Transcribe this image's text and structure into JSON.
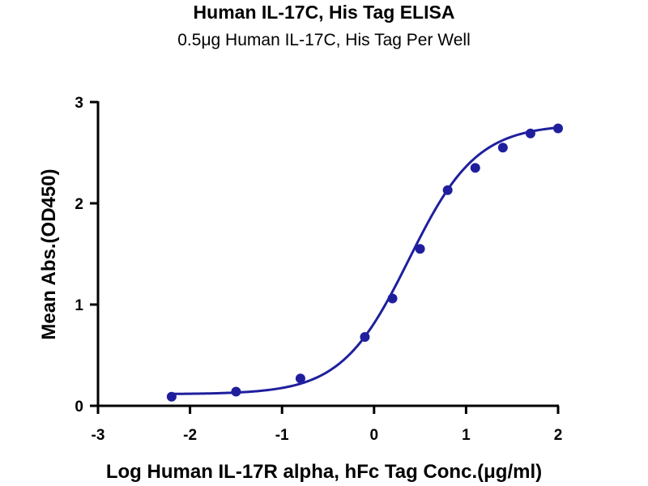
{
  "chart_data": {
    "type": "scatter",
    "title": "Human IL-17C, His Tag ELISA",
    "subtitle": "0.5μg Human IL-17C, His Tag Per Well",
    "xlabel": "Log Human IL-17R alpha, hFc Tag Conc.(μg/ml)",
    "ylabel": "Mean Abs.(OD450)",
    "xlim": [
      -3,
      2
    ],
    "ylim": [
      0,
      3
    ],
    "xticks": [
      "-3",
      "-2",
      "-1",
      "0",
      "1",
      "2"
    ],
    "yticks": [
      "0",
      "1",
      "2",
      "3"
    ],
    "grid": false,
    "color": "#1f1f9e",
    "series": [
      {
        "x": [
          -2.2,
          -1.5,
          -0.8,
          -0.1,
          0.2,
          0.5,
          0.8,
          1.1,
          1.4,
          1.7,
          2.0
        ],
        "values": [
          0.09,
          0.14,
          0.27,
          0.68,
          1.06,
          1.55,
          2.13,
          2.35,
          2.55,
          2.69,
          2.74
        ]
      }
    ],
    "fit": {
      "model": "4PL",
      "bottom": 0.115,
      "top": 2.78,
      "log_ec50": 0.38,
      "hill_slope": 1.18
    }
  }
}
